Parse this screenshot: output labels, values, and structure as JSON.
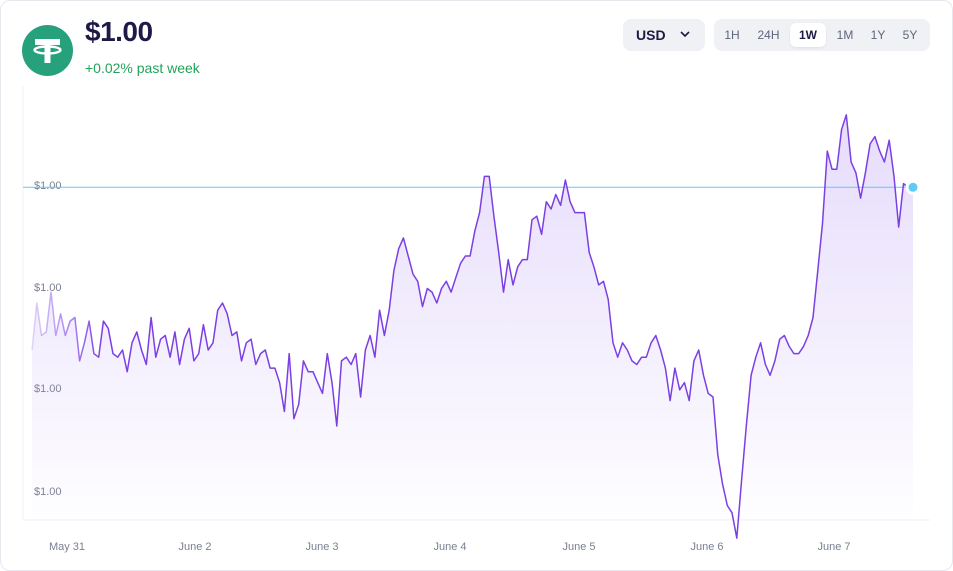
{
  "header": {
    "price": "$1.00",
    "change": "+0.02% past week",
    "logo_icon": "tether-icon",
    "logo_color": "#26a17b",
    "change_color": "#21a35b"
  },
  "controls": {
    "currency": "USD",
    "ranges": [
      "1H",
      "24H",
      "1W",
      "1M",
      "1Y",
      "5Y"
    ],
    "active_range": "1W"
  },
  "chart_data": {
    "type": "area",
    "title": "",
    "xlabel": "",
    "ylabel": "",
    "x_ticks": [
      "May 31",
      "June 2",
      "June 3",
      "June 4",
      "June 5",
      "June 6",
      "June 7"
    ],
    "y_ticks": [
      "$1.00",
      "$1.00",
      "$1.00",
      "$1.00"
    ],
    "ylim": [
      0.9994,
      1.0006
    ],
    "grid": false,
    "legend": "none",
    "line_color": "#7b3fe4",
    "current_line_color": "#5ccbf5",
    "current_value": 1.00032,
    "series": [
      {
        "values": [
          0.99987,
          1.0,
          0.99991,
          0.99992,
          1.00003,
          0.99991,
          0.99997,
          0.99991,
          0.99995,
          0.99996,
          0.99984,
          0.99989,
          0.99995,
          0.99986,
          0.99985,
          0.99995,
          0.99993,
          0.99986,
          0.99985,
          0.99987,
          0.99981,
          0.99989,
          0.99992,
          0.99987,
          0.99983,
          0.99996,
          0.99985,
          0.9999,
          0.99991,
          0.99985,
          0.99992,
          0.99983,
          0.9999,
          0.99993,
          0.99984,
          0.99986,
          0.99994,
          0.99987,
          0.99989,
          0.99998,
          1.0,
          0.99997,
          0.99991,
          0.99992,
          0.99984,
          0.99989,
          0.9999,
          0.99983,
          0.99986,
          0.99987,
          0.99982,
          0.99982,
          0.99978,
          0.9997,
          0.99986,
          0.99968,
          0.99972,
          0.99984,
          0.99981,
          0.99981,
          0.99978,
          0.99975,
          0.99986,
          0.99978,
          0.99966,
          0.99984,
          0.99985,
          0.99983,
          0.99986,
          0.99974,
          0.99987,
          0.99991,
          0.99985,
          0.99998,
          0.99991,
          0.99998,
          1.00009,
          1.00015,
          1.00018,
          1.00013,
          1.00008,
          1.00006,
          0.99999,
          1.00004,
          1.00003,
          1.0,
          1.00004,
          1.00006,
          1.00003,
          1.00007,
          1.00011,
          1.00013,
          1.00013,
          1.0002,
          1.00025,
          1.00035,
          1.00035,
          1.00024,
          1.00014,
          1.00003,
          1.00012,
          1.00005,
          1.0001,
          1.00012,
          1.00012,
          1.00023,
          1.00024,
          1.00019,
          1.00028,
          1.00026,
          1.0003,
          1.00027,
          1.00034,
          1.00028,
          1.00025,
          1.00025,
          1.00025,
          1.00014,
          1.0001,
          1.00005,
          1.00006,
          1.00001,
          0.99989,
          0.99985,
          0.99989,
          0.99987,
          0.99984,
          0.99983,
          0.99985,
          0.99985,
          0.99989,
          0.99991,
          0.99987,
          0.99982,
          0.99973,
          0.99982,
          0.99976,
          0.99978,
          0.99973,
          0.99984,
          0.99987,
          0.9998,
          0.99975,
          0.99974,
          0.99958,
          0.9995,
          0.99944,
          0.99942,
          0.99935,
          0.99951,
          0.99966,
          0.9998,
          0.99985,
          0.99989,
          0.99983,
          0.9998,
          0.99984,
          0.9999,
          0.99991,
          0.99988,
          0.99986,
          0.99986,
          0.99988,
          0.99991,
          0.99996,
          1.00009,
          1.00022,
          1.00042,
          1.00037,
          1.00037,
          1.00048,
          1.00052,
          1.00039,
          1.00036,
          1.00029,
          1.00036,
          1.00044,
          1.00046,
          1.00042,
          1.00039,
          1.00045,
          1.00035,
          1.00021,
          1.00033,
          1.00032,
          1.00032
        ]
      }
    ]
  }
}
